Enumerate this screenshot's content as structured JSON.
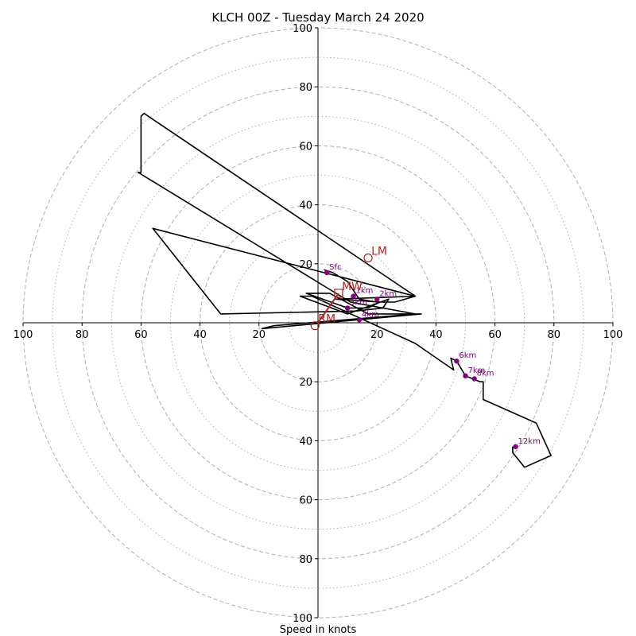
{
  "chart_data": {
    "type": "line",
    "title": "KLCH 00Z - Tuesday March 24 2020",
    "xlabel": "Speed in knots",
    "ylabel": "",
    "xlim": [
      -100,
      100
    ],
    "ylim": [
      -100,
      100
    ],
    "grid": true,
    "rings": [
      10,
      20,
      30,
      40,
      50,
      60,
      70,
      80,
      90,
      100
    ],
    "x_tick_labels": [
      "100",
      "80",
      "60",
      "40",
      "20",
      "20",
      "40",
      "60",
      "80",
      "100"
    ],
    "x_tick_values": [
      -100,
      -80,
      -60,
      -40,
      -20,
      20,
      40,
      60,
      80,
      100
    ],
    "y_tick_labels": [
      "100",
      "80",
      "60",
      "40",
      "20",
      "20",
      "40",
      "60",
      "80",
      "100"
    ],
    "y_tick_values": [
      100,
      80,
      60,
      40,
      20,
      -20,
      -40,
      -60,
      -80,
      -100
    ],
    "series": [
      {
        "x": [
          2,
          5,
          10,
          12,
          14,
          20,
          26,
          33,
          6,
          21,
          17,
          10,
          -4,
          4,
          17,
          25,
          35,
          -19,
          -15,
          33,
          11,
          -61,
          -60,
          -60,
          -60,
          -59,
          33,
          -56,
          -33,
          13,
          22,
          24,
          10,
          -6,
          -2,
          33,
          46,
          45,
          47,
          50,
          55,
          56,
          56,
          74,
          79,
          70,
          66,
          66
        ],
        "y": [
          18,
          17,
          14,
          11,
          8,
          7,
          7,
          9,
          8,
          7,
          5,
          5,
          10,
          10,
          3,
          3,
          3,
          -2,
          -1,
          3,
          7,
          51,
          51,
          63,
          70,
          71,
          9,
          32,
          3,
          4,
          5,
          8,
          3,
          9,
          9,
          -7,
          -16,
          -12,
          -13,
          -18,
          -20,
          -20,
          -26,
          -34,
          -45,
          -49,
          -44,
          -42
        ]
      }
    ],
    "height_markers": [
      {
        "label": "Sfc",
        "x": 3,
        "y": 17
      },
      {
        "label": "1km",
        "x": 12,
        "y": 9
      },
      {
        "label": "2km",
        "x": 20,
        "y": 8
      },
      {
        "label": "3km",
        "x": 10,
        "y": 5
      },
      {
        "label": "4km",
        "x": 14,
        "y": 1
      },
      {
        "label": "6km",
        "x": 47,
        "y": -13
      },
      {
        "label": "7km",
        "x": 50,
        "y": -18
      },
      {
        "label": "8km",
        "x": 53,
        "y": -19
      },
      {
        "label": "12km",
        "x": 67,
        "y": -42
      }
    ],
    "motion_markers": [
      {
        "label": "LM",
        "x": 17,
        "y": 22
      },
      {
        "label": "RM",
        "x": -1,
        "y": -1
      },
      {
        "label": "MW",
        "x": 7,
        "y": 10
      }
    ],
    "shear_vector": {
      "from": [
        0,
        0
      ],
      "to": [
        7,
        10
      ]
    },
    "colors": {
      "hodograph": "#000000",
      "height": "#800080",
      "motion": "#b22222",
      "grid": "#b0b0b0"
    }
  }
}
